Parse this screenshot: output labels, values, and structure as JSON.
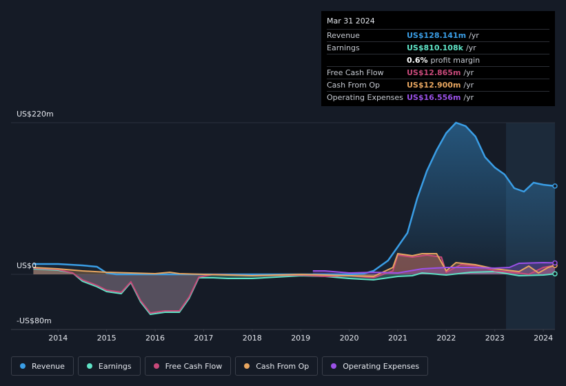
{
  "chart_data": {
    "type": "line",
    "xlim": [
      2013.03,
      2024.24
    ],
    "xticks": [
      2014,
      2015,
      2016,
      2017,
      2018,
      2019,
      2020,
      2021,
      2022,
      2023,
      2024
    ],
    "ylim": [
      -80,
      220
    ],
    "yticks": [
      {
        "value": -80,
        "label": "-US$80m"
      },
      {
        "value": 0,
        "label": "US$0"
      },
      {
        "value": 220,
        "label": "US$220m"
      }
    ],
    "series": [
      {
        "name": "Revenue",
        "color": "#3a9ee6",
        "x": [
          2013.49,
          2014.0,
          2014.5,
          2014.8,
          2015.0,
          2015.2,
          2016,
          2017,
          2018,
          2019,
          2020,
          2020.3,
          2020.5,
          2020.8,
          2021.0,
          2021.2,
          2021.4,
          2021.6,
          2021.8,
          2022.0,
          2022.2,
          2022.4,
          2022.6,
          2022.8,
          2023.0,
          2023.2,
          2023.4,
          2023.6,
          2023.8,
          2024.0,
          2024.24
        ],
        "values": [
          15,
          15,
          13,
          11,
          2,
          0,
          0,
          0,
          0,
          0,
          0,
          1,
          5,
          20,
          40,
          60,
          110,
          150,
          180,
          205,
          220,
          215,
          200,
          170,
          155,
          145,
          125,
          120,
          133,
          130,
          128.141
        ]
      },
      {
        "name": "Earnings",
        "color": "#5fe3c6",
        "x": [
          2013.49,
          2014.0,
          2014.3,
          2014.5,
          2014.8,
          2015.0,
          2015.3,
          2015.5,
          2015.7,
          2015.9,
          2016.2,
          2016.5,
          2016.7,
          2016.9,
          2017.2,
          2017.5,
          2018,
          2018.5,
          2019,
          2019.5,
          2020,
          2020.5,
          2021,
          2021.3,
          2021.5,
          2022,
          2022.5,
          2023,
          2023.5,
          2024,
          2024.24
        ],
        "values": [
          8,
          6,
          2,
          -10,
          -18,
          -25,
          -28,
          -12,
          -40,
          -58,
          -55,
          -55,
          -35,
          -5,
          -5,
          -6,
          -6,
          -4,
          -2,
          -3,
          -6,
          -8,
          -3,
          -2,
          2,
          -1,
          3,
          4,
          -2,
          -1,
          0.810108
        ]
      },
      {
        "name": "Free Cash Flow",
        "color": "#c8497a",
        "x": [
          2013.49,
          2014.0,
          2014.3,
          2014.5,
          2014.8,
          2015.0,
          2015.3,
          2015.5,
          2015.7,
          2015.9,
          2016.2,
          2016.5,
          2016.7,
          2016.9,
          2017.2,
          2018,
          2019,
          2019.5,
          2020,
          2020.5,
          2020.9,
          2021.0,
          2021.3,
          2021.6,
          2021.9,
          2022.0,
          2022.3,
          2022.7,
          2023,
          2023.5,
          2023.7,
          2024,
          2024.24
        ],
        "values": [
          9,
          7,
          2,
          -8,
          -16,
          -23,
          -26,
          -11,
          -38,
          -56,
          -53,
          -53,
          -33,
          -4,
          0,
          -2,
          -1,
          -3,
          -2,
          -5,
          5,
          28,
          25,
          28,
          25,
          3,
          14,
          12,
          5,
          2,
          0,
          10,
          12.865
        ]
      },
      {
        "name": "Cash From Op",
        "color": "#e8a660",
        "x": [
          2013.49,
          2014,
          2014.5,
          2015,
          2015.5,
          2016,
          2016.3,
          2016.5,
          2017,
          2018,
          2019,
          2020,
          2020.5,
          2020.9,
          2021.0,
          2021.3,
          2021.5,
          2021.8,
          2022.0,
          2022.2,
          2022.6,
          2023,
          2023.5,
          2023.7,
          2023.9,
          2024.1,
          2024.24
        ],
        "values": [
          10,
          8,
          5,
          3,
          2,
          1,
          3,
          1,
          0,
          -2,
          0,
          -2,
          -3,
          10,
          30,
          27,
          30,
          30,
          5,
          17,
          14,
          8,
          4,
          12,
          2,
          10,
          12.9
        ]
      },
      {
        "name": "Operating Expenses",
        "color": "#9b51e8",
        "x": [
          2019.25,
          2019.5,
          2020,
          2020.5,
          2021,
          2021.5,
          2022,
          2022.5,
          2023,
          2023.3,
          2023.5,
          2024,
          2024.24
        ],
        "values": [
          5,
          5,
          2,
          3,
          2,
          8,
          10,
          10,
          9,
          10,
          16,
          17,
          16.556
        ]
      }
    ]
  },
  "tooltip": {
    "date": "Mar 31 2024",
    "rows": [
      {
        "label": "Revenue",
        "value": "US$128.141m",
        "unit": "/yr",
        "color": "#3a9ee6"
      },
      {
        "label": "Earnings",
        "value": "US$810.108k",
        "unit": "/yr",
        "color": "#5fe3c6"
      },
      {
        "label": "",
        "value": "0.6%",
        "unit": "profit margin",
        "color": "#ffffff"
      },
      {
        "label": "Free Cash Flow",
        "value": "US$12.865m",
        "unit": "/yr",
        "color": "#c8497a"
      },
      {
        "label": "Cash From Op",
        "value": "US$12.900m",
        "unit": "/yr",
        "color": "#e8a660"
      },
      {
        "label": "Operating Expenses",
        "value": "US$16.556m",
        "unit": "/yr",
        "color": "#9b51e8"
      }
    ]
  }
}
